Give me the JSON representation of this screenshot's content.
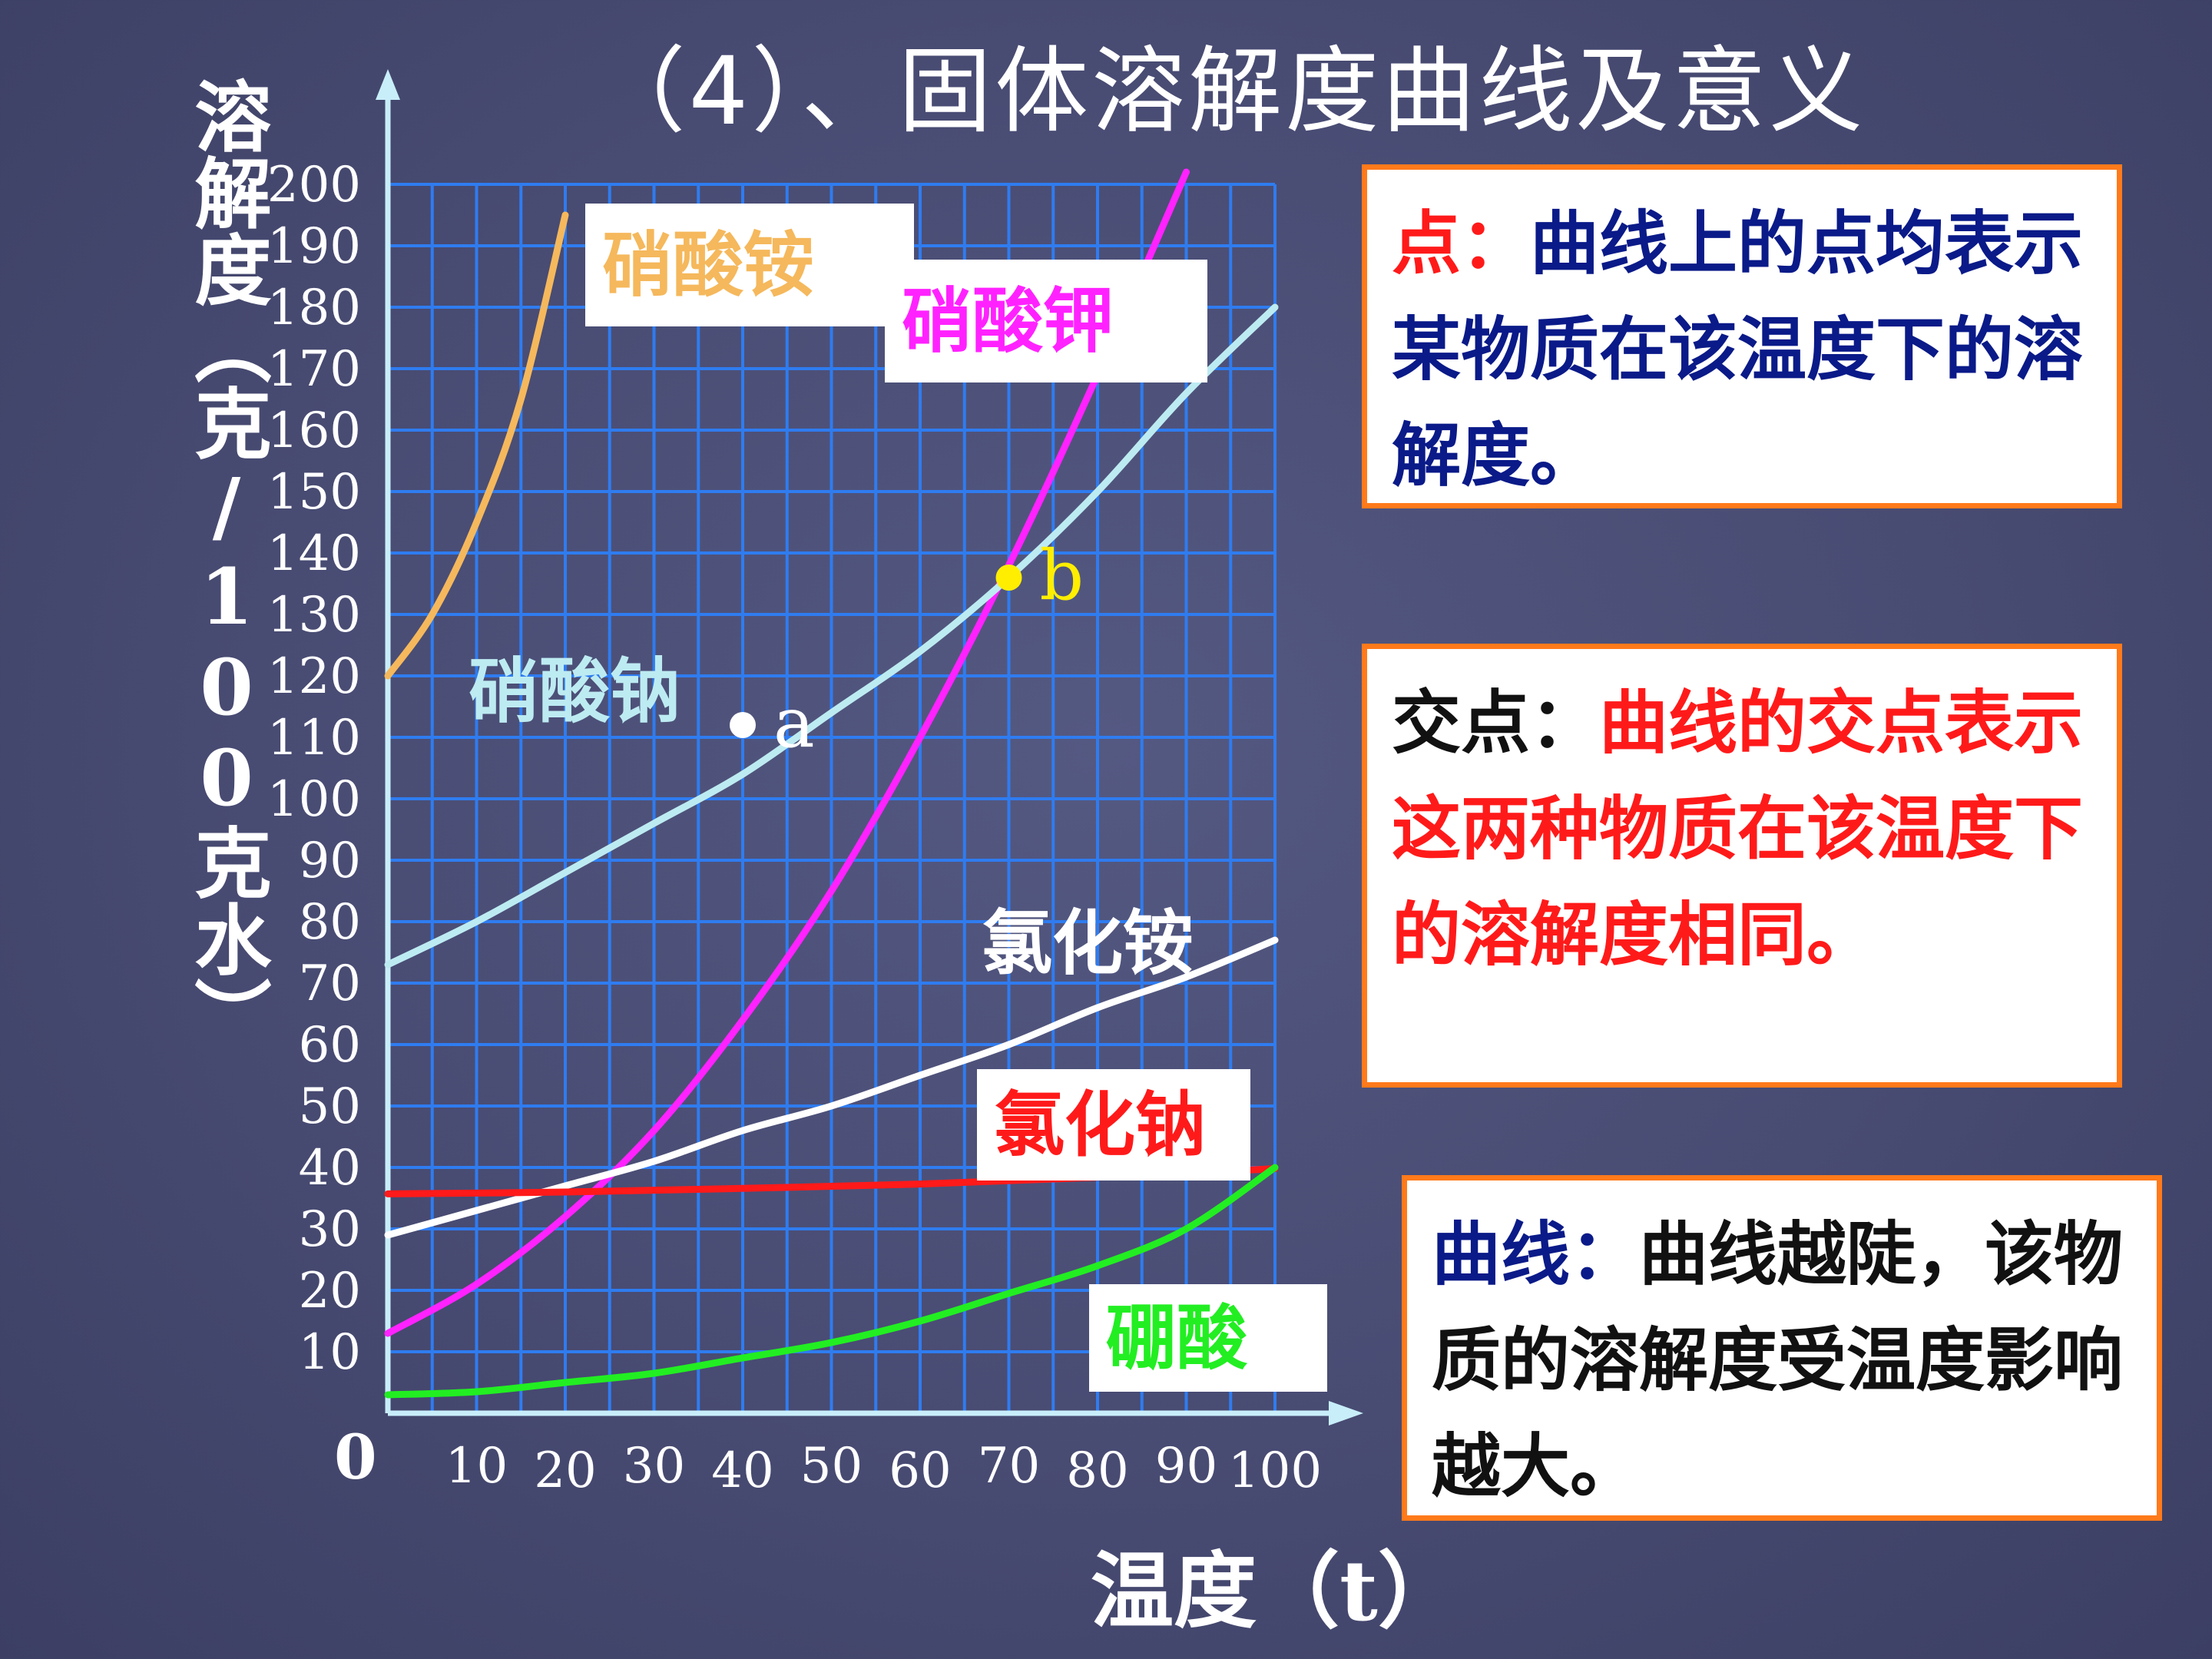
{
  "slide": {
    "title": "（4）、固体溶解度曲线及意义"
  },
  "chart_data": {
    "type": "line",
    "ylabel": "溶解度（克/100克水）",
    "xlabel": "温度（t）",
    "origin_label": "0",
    "xlim": [
      0,
      100
    ],
    "ylim": [
      0,
      200
    ],
    "x_ticks": [
      10,
      20,
      30,
      40,
      50,
      60,
      70,
      80,
      90,
      100
    ],
    "y_ticks": [
      10,
      20,
      30,
      40,
      50,
      60,
      70,
      80,
      90,
      100,
      110,
      120,
      130,
      140,
      150,
      160,
      170,
      180,
      190,
      200
    ],
    "grid": true,
    "series": [
      {
        "name": "硝酸铵",
        "color": "#f5b85c",
        "x": [
          0,
          5,
          10,
          15,
          20
        ],
        "y": [
          120,
          130,
          145,
          165,
          195
        ]
      },
      {
        "name": "硝酸钾",
        "color": "#ff22ff",
        "x": [
          0,
          10,
          20,
          30,
          40,
          50,
          60,
          70,
          80,
          90
        ],
        "y": [
          13,
          21,
          32,
          46,
          64,
          85,
          110,
          138,
          169,
          202
        ]
      },
      {
        "name": "硝酸钠",
        "color": "#bdebf2",
        "x": [
          0,
          10,
          20,
          30,
          40,
          50,
          60,
          70,
          80,
          90,
          100
        ],
        "y": [
          73,
          80,
          88,
          96,
          104,
          114,
          124,
          136,
          150,
          166,
          180
        ]
      },
      {
        "name": "氯化铵",
        "color": "#ffffff",
        "x": [
          0,
          10,
          20,
          30,
          40,
          50,
          60,
          70,
          80,
          90,
          100
        ],
        "y": [
          29,
          33,
          37,
          41,
          46,
          50,
          55,
          60,
          66,
          71,
          77
        ]
      },
      {
        "name": "氯化钠",
        "color": "#ff1a1a",
        "x": [
          0,
          20,
          40,
          60,
          80,
          100
        ],
        "y": [
          35.7,
          36.0,
          36.6,
          37.3,
          38.4,
          39.8
        ]
      },
      {
        "name": "硼酸",
        "color": "#22ee22",
        "x": [
          0,
          10,
          20,
          30,
          40,
          50,
          60,
          70,
          80,
          90,
          100
        ],
        "y": [
          3,
          3.5,
          5,
          6.5,
          9,
          11.5,
          15,
          19.5,
          24,
          30,
          40
        ]
      }
    ],
    "points": [
      {
        "label": "a",
        "x": 40,
        "y": 112,
        "color": "#ffffff"
      },
      {
        "label": "b",
        "x": 70,
        "y": 136,
        "color": "#ffee00"
      }
    ]
  },
  "boxes": {
    "point": {
      "key": "点：",
      "text": "曲线上的点均表示某物质在该温度下的溶解度。"
    },
    "intersection": {
      "key": "交点：",
      "text": "曲线的交点表示这两种物质在该温度下的溶解度相同。"
    },
    "curve": {
      "key": "曲线：",
      "text": "曲线越陡，该物质的溶解度受温度影响越大。"
    }
  }
}
